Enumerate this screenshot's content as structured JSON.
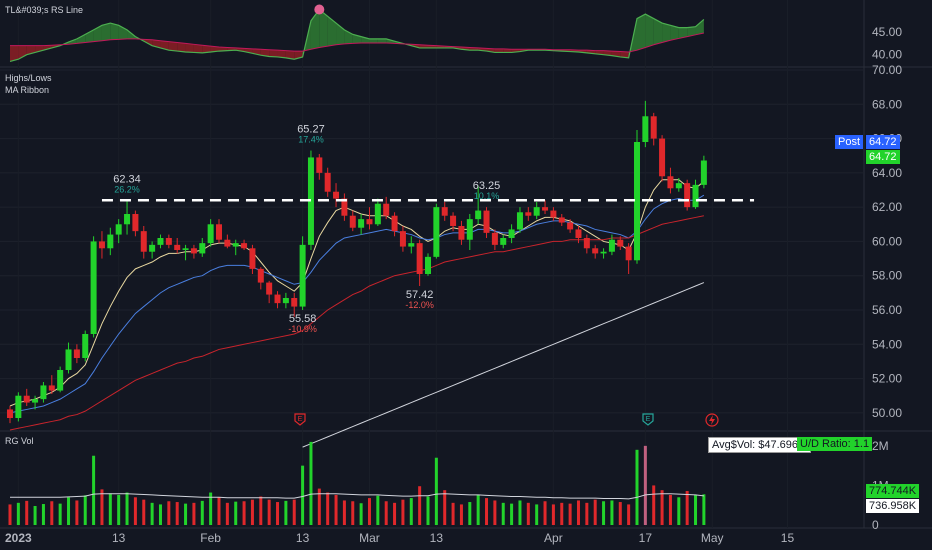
{
  "panes": {
    "rs": {
      "title": "TL&#039;s RS Line"
    },
    "price": {
      "title_1": "Highs/Lows",
      "title_2": "MA Ribbon"
    },
    "vol": {
      "title": "RG Vol"
    }
  },
  "tags": {
    "post_label": "Post",
    "post_value": "64.72",
    "last_value": "64.72",
    "avg_vol": "Avg$Vol: $47.696M",
    "ud_ratio": "U/D Ratio: 1.1",
    "vol_last": "774.744K",
    "vol_avg": "736.958K"
  },
  "colors": {
    "up": "#22d32b",
    "down": "#e0282b",
    "background": "#131722",
    "post_tag": "#2962ff",
    "last_tag": "#22d32b"
  },
  "icons": [
    "earnings-icon",
    "earnings-icon",
    "earnings-icon",
    "dividend-icon"
  ],
  "chart_data": {
    "type": "candlestick",
    "x_ticks": [
      "2023",
      "13",
      "Feb",
      "13",
      "Mar",
      "13",
      "Apr",
      "17",
      "May",
      "15"
    ],
    "price_axis": {
      "ylim": [
        49,
        70
      ],
      "ticks": [
        "70.00",
        "68.00",
        "66.00",
        "64.00",
        "62.00",
        "60.00",
        "58.00",
        "56.00",
        "54.00",
        "52.00",
        "50.00"
      ]
    },
    "rs_axis": {
      "ticks": [
        "45.00",
        "40.00"
      ]
    },
    "vol_axis": {
      "ticks": [
        "2M",
        "1M",
        "0"
      ]
    },
    "horizontal_line": 62.4,
    "annotations": [
      {
        "price": "62.34",
        "pct": "26.2%",
        "kind": "high"
      },
      {
        "price": "65.27",
        "pct": "17.4%",
        "kind": "high"
      },
      {
        "price": "55.58",
        "pct": "-10.9%",
        "kind": "low"
      },
      {
        "price": "63.25",
        "pct": "10.1%",
        "kind": "high"
      },
      {
        "price": "57.42",
        "pct": "-12.0%",
        "kind": "low"
      }
    ],
    "candles": [
      [
        50.2,
        50.4,
        49.4,
        49.7
      ],
      [
        49.7,
        51.2,
        49.5,
        51.0
      ],
      [
        51.0,
        51.4,
        50.4,
        50.6
      ],
      [
        50.6,
        51.0,
        50.2,
        50.8
      ],
      [
        50.8,
        51.8,
        50.6,
        51.6
      ],
      [
        51.6,
        52.2,
        51.1,
        51.3
      ],
      [
        51.3,
        52.7,
        51.2,
        52.5
      ],
      [
        52.5,
        54.1,
        52.3,
        53.7
      ],
      [
        53.7,
        54.0,
        52.9,
        53.2
      ],
      [
        53.2,
        54.8,
        53.0,
        54.6
      ],
      [
        54.6,
        60.3,
        54.4,
        60.0
      ],
      [
        60.0,
        60.6,
        59.0,
        59.6
      ],
      [
        59.6,
        60.8,
        59.2,
        60.4
      ],
      [
        60.4,
        61.3,
        59.9,
        61.0
      ],
      [
        61.0,
        62.4,
        60.4,
        61.6
      ],
      [
        61.6,
        61.8,
        60.3,
        60.6
      ],
      [
        60.6,
        60.9,
        59.0,
        59.4
      ],
      [
        59.4,
        60.0,
        59.0,
        59.8
      ],
      [
        59.8,
        60.4,
        59.6,
        60.2
      ],
      [
        60.2,
        60.4,
        59.6,
        59.8
      ],
      [
        59.8,
        60.2,
        59.3,
        59.5
      ],
      [
        59.5,
        59.8,
        58.9,
        59.6
      ],
      [
        59.6,
        59.8,
        59.0,
        59.3
      ],
      [
        59.3,
        60.2,
        59.1,
        59.9
      ],
      [
        59.9,
        61.3,
        59.7,
        61.0
      ],
      [
        61.0,
        61.3,
        59.9,
        60.1
      ],
      [
        60.1,
        60.4,
        59.6,
        59.7
      ],
      [
        59.7,
        60.1,
        59.2,
        59.9
      ],
      [
        59.9,
        60.1,
        59.5,
        59.6
      ],
      [
        59.6,
        59.8,
        58.1,
        58.4
      ],
      [
        58.4,
        58.5,
        57.2,
        57.6
      ],
      [
        57.6,
        57.7,
        56.4,
        56.9
      ],
      [
        56.9,
        57.1,
        56.1,
        56.4
      ],
      [
        56.4,
        57.0,
        56.1,
        56.7
      ],
      [
        56.7,
        57.0,
        55.6,
        56.2
      ],
      [
        56.2,
        60.3,
        56.0,
        59.8
      ],
      [
        59.8,
        65.3,
        59.5,
        64.9
      ],
      [
        64.9,
        65.1,
        63.6,
        64.0
      ],
      [
        64.0,
        64.3,
        62.6,
        62.9
      ],
      [
        62.9,
        63.4,
        62.0,
        62.5
      ],
      [
        62.5,
        62.8,
        61.2,
        61.5
      ],
      [
        61.5,
        61.8,
        60.6,
        60.8
      ],
      [
        60.8,
        61.6,
        60.4,
        61.3
      ],
      [
        61.3,
        62.0,
        60.7,
        61.0
      ],
      [
        61.0,
        62.5,
        60.9,
        62.2
      ],
      [
        62.2,
        62.6,
        61.3,
        61.5
      ],
      [
        61.5,
        61.7,
        60.3,
        60.6
      ],
      [
        60.6,
        60.9,
        59.4,
        59.7
      ],
      [
        59.7,
        60.3,
        59.3,
        59.9
      ],
      [
        59.9,
        60.1,
        57.4,
        58.1
      ],
      [
        58.1,
        59.3,
        58.0,
        59.1
      ],
      [
        59.1,
        62.2,
        59.0,
        62.0
      ],
      [
        62.0,
        62.3,
        61.2,
        61.5
      ],
      [
        61.5,
        61.7,
        60.6,
        60.9
      ],
      [
        60.9,
        61.2,
        59.8,
        60.1
      ],
      [
        60.1,
        61.6,
        59.5,
        61.3
      ],
      [
        61.3,
        63.25,
        61.0,
        61.8
      ],
      [
        61.8,
        62.0,
        60.2,
        60.5
      ],
      [
        60.5,
        60.7,
        59.5,
        59.8
      ],
      [
        59.8,
        60.4,
        59.6,
        60.2
      ],
      [
        60.2,
        61.0,
        59.9,
        60.7
      ],
      [
        60.7,
        62.0,
        60.5,
        61.7
      ],
      [
        61.7,
        62.0,
        61.2,
        61.5
      ],
      [
        61.5,
        62.3,
        61.3,
        62.0
      ],
      [
        62.0,
        62.4,
        61.6,
        61.8
      ],
      [
        61.8,
        62.0,
        61.2,
        61.4
      ],
      [
        61.4,
        61.6,
        60.9,
        61.1
      ],
      [
        61.1,
        61.3,
        60.5,
        60.7
      ],
      [
        60.7,
        60.9,
        59.9,
        60.2
      ],
      [
        60.2,
        60.4,
        59.3,
        59.6
      ],
      [
        59.6,
        59.8,
        59.0,
        59.3
      ],
      [
        59.3,
        59.6,
        59.0,
        59.4
      ],
      [
        59.4,
        60.4,
        59.2,
        60.1
      ],
      [
        60.1,
        60.3,
        59.5,
        59.7
      ],
      [
        59.7,
        59.9,
        58.1,
        58.9
      ],
      [
        58.9,
        66.5,
        58.7,
        65.8
      ],
      [
        65.8,
        68.2,
        65.5,
        67.3
      ],
      [
        67.3,
        67.5,
        65.6,
        66.0
      ],
      [
        66.0,
        66.2,
        63.5,
        63.8
      ],
      [
        63.8,
        64.3,
        62.8,
        63.1
      ],
      [
        63.1,
        63.7,
        62.9,
        63.4
      ],
      [
        63.4,
        63.6,
        61.8,
        62.0
      ],
      [
        62.0,
        63.6,
        61.9,
        63.3
      ],
      [
        63.3,
        65.0,
        63.1,
        64.72
      ]
    ],
    "ma_ribbon": [
      {
        "name": "",
        "color": "#e8d8a0",
        "values": [
          50.4,
          50.6,
          50.7,
          50.8,
          51.0,
          51.2,
          51.5,
          52.0,
          52.3,
          52.8,
          54.0,
          55.2,
          56.2,
          57.1,
          57.9,
          58.4,
          58.6,
          58.8,
          59.1,
          59.3,
          59.3,
          59.4,
          59.4,
          59.5,
          59.8,
          59.9,
          59.9,
          59.8,
          59.7,
          59.4,
          58.8,
          58.2,
          57.7,
          57.4,
          57.1,
          57.6,
          59.0,
          60.3,
          61.1,
          61.8,
          62.0,
          61.8,
          61.6,
          61.5,
          61.5,
          61.5,
          61.2,
          60.9,
          60.7,
          60.3,
          60.0,
          60.2,
          60.6,
          60.8,
          60.7,
          60.7,
          61.0,
          60.9,
          60.6,
          60.4,
          60.3,
          60.6,
          60.9,
          61.2,
          61.4,
          61.4,
          61.3,
          61.2,
          60.9,
          60.6,
          60.3,
          60.0,
          59.9,
          59.8,
          59.5,
          60.5,
          62.0,
          63.0,
          63.6,
          63.6,
          63.6,
          63.2,
          63.1,
          63.5
        ]
      },
      {
        "name": "",
        "color": "#4a7fe0",
        "values": [
          50.0,
          50.1,
          50.2,
          50.3,
          50.4,
          50.6,
          50.8,
          51.1,
          51.4,
          51.7,
          52.4,
          53.2,
          53.9,
          54.6,
          55.2,
          55.8,
          56.2,
          56.6,
          57.0,
          57.3,
          57.5,
          57.7,
          57.9,
          58.0,
          58.3,
          58.5,
          58.6,
          58.6,
          58.6,
          58.5,
          58.3,
          58.1,
          57.9,
          57.7,
          57.5,
          57.6,
          58.2,
          58.9,
          59.4,
          59.9,
          60.2,
          60.3,
          60.4,
          60.5,
          60.6,
          60.7,
          60.6,
          60.5,
          60.4,
          60.2,
          60.1,
          60.2,
          60.4,
          60.5,
          60.5,
          60.5,
          60.7,
          60.7,
          60.6,
          60.5,
          60.5,
          60.6,
          60.8,
          61.0,
          61.1,
          61.2,
          61.2,
          61.1,
          61.0,
          60.9,
          60.7,
          60.6,
          60.5,
          60.4,
          60.2,
          60.6,
          61.3,
          61.9,
          62.2,
          62.4,
          62.5,
          62.4,
          62.4,
          62.7
        ]
      },
      {
        "name": "",
        "color": "#c8242c",
        "values": [
          49.0,
          49.1,
          49.2,
          49.3,
          49.4,
          49.5,
          49.6,
          49.8,
          49.9,
          50.1,
          50.4,
          50.7,
          51.0,
          51.3,
          51.6,
          51.9,
          52.1,
          52.3,
          52.5,
          52.7,
          52.9,
          53.0,
          53.2,
          53.3,
          53.5,
          53.7,
          53.8,
          53.9,
          54.0,
          54.1,
          54.2,
          54.3,
          54.4,
          54.5,
          54.6,
          54.8,
          55.2,
          55.6,
          56.0,
          56.3,
          56.6,
          56.9,
          57.1,
          57.4,
          57.6,
          57.8,
          58.0,
          58.1,
          58.2,
          58.3,
          58.4,
          58.6,
          58.8,
          58.9,
          59.0,
          59.1,
          59.2,
          59.3,
          59.4,
          59.4,
          59.5,
          59.6,
          59.7,
          59.8,
          59.9,
          60.0,
          60.0,
          60.1,
          60.1,
          60.1,
          60.1,
          60.1,
          60.2,
          60.2,
          60.2,
          60.4,
          60.6,
          60.8,
          61.0,
          61.1,
          61.2,
          61.3,
          61.4,
          61.5
        ]
      },
      {
        "name": "",
        "color": "#d1d4dc",
        "values": [
          41.0,
          41.2,
          41.4,
          41.6,
          41.8,
          42.0,
          42.2,
          42.4,
          42.6,
          42.8,
          43.0,
          43.2,
          43.4,
          43.6,
          43.8,
          44.0,
          44.2,
          44.4,
          44.6,
          44.8,
          45.0,
          45.2,
          45.4,
          45.6,
          45.8,
          46.0,
          46.2,
          46.4,
          46.6,
          46.8,
          47.0,
          47.2,
          47.4,
          47.6,
          47.8,
          48.0,
          48.2,
          48.4,
          48.6,
          48.8,
          49.0,
          49.2,
          49.4,
          49.6,
          49.8,
          50.0,
          50.2,
          50.4,
          50.6,
          50.8,
          51.0,
          51.2,
          51.4,
          51.6,
          51.8,
          52.0,
          52.2,
          52.4,
          52.6,
          52.8,
          53.0,
          53.2,
          53.4,
          53.6,
          53.8,
          54.0,
          54.2,
          54.4,
          54.6,
          54.8,
          55.0,
          55.2,
          55.4,
          55.6,
          55.8,
          56.0,
          56.2,
          56.4,
          56.6,
          56.8,
          57.0,
          57.2,
          57.4,
          57.6
        ]
      }
    ],
    "rs_line": [
      38.5,
      39.0,
      40.0,
      40.5,
      41.0,
      41.5,
      42.0,
      42.8,
      43.5,
      44.5,
      45.5,
      46.5,
      47.0,
      46.5,
      45.5,
      44.0,
      43.0,
      42.0,
      41.5,
      41.0,
      40.8,
      40.6,
      40.5,
      40.4,
      40.6,
      40.8,
      40.9,
      41.0,
      40.7,
      40.3,
      39.9,
      39.6,
      39.5,
      39.3,
      39.0,
      39.5,
      47.5,
      50.0,
      48.5,
      47.0,
      45.5,
      44.5,
      44.0,
      43.5,
      43.5,
      43.5,
      43.0,
      42.5,
      42.0,
      41.5,
      41.5,
      41.5,
      41.5,
      41.5,
      41.2,
      41.0,
      41.0,
      40.8,
      40.5,
      40.5,
      40.5,
      40.7,
      41.0,
      41.0,
      41.0,
      40.9,
      40.8,
      40.7,
      40.6,
      40.4,
      40.2,
      40.0,
      39.8,
      39.5,
      39.3,
      48.0,
      49.0,
      48.0,
      47.0,
      46.5,
      46.0,
      46.0,
      46.2,
      47.8
    ],
    "rs_ma": [
      42.0,
      42.0,
      42.0,
      42.0,
      42.0,
      42.1,
      42.2,
      42.3,
      42.5,
      42.7,
      42.9,
      43.1,
      43.3,
      43.4,
      43.5,
      43.5,
      43.4,
      43.3,
      43.1,
      42.9,
      42.7,
      42.5,
      42.3,
      42.1,
      41.9,
      41.7,
      41.6,
      41.5,
      41.4,
      41.3,
      41.2,
      41.1,
      41.0,
      40.9,
      40.8,
      40.8,
      41.2,
      41.6,
      41.9,
      42.2,
      42.4,
      42.5,
      42.6,
      42.6,
      42.6,
      42.6,
      42.5,
      42.4,
      42.3,
      42.2,
      42.1,
      42.0,
      41.9,
      41.8,
      41.7,
      41.6,
      41.5,
      41.4,
      41.3,
      41.3,
      41.2,
      41.2,
      41.2,
      41.2,
      41.2,
      41.1,
      41.1,
      41.1,
      41.0,
      41.0,
      40.9,
      40.9,
      40.8,
      40.7,
      40.6,
      41.0,
      41.6,
      42.2,
      42.7,
      43.2,
      43.6,
      44.0,
      44.4,
      44.8
    ],
    "volume_k": [
      520,
      560,
      610,
      480,
      530,
      600,
      540,
      700,
      620,
      750,
      1750,
      900,
      800,
      760,
      820,
      700,
      640,
      560,
      520,
      600,
      580,
      540,
      560,
      610,
      820,
      700,
      560,
      590,
      600,
      640,
      720,
      640,
      580,
      610,
      640,
      1500,
      2100,
      920,
      820,
      760,
      620,
      600,
      550,
      680,
      740,
      600,
      560,
      640,
      680,
      980,
      720,
      1700,
      880,
      560,
      520,
      580,
      760,
      680,
      620,
      560,
      540,
      620,
      560,
      520,
      600,
      520,
      560,
      540,
      620,
      560,
      640,
      600,
      620,
      580,
      520,
      1900,
      2000,
      1000,
      880,
      760,
      700,
      860,
      760,
      775
    ],
    "volume_avg_k": [
      700,
      700,
      700,
      700,
      700,
      700,
      700,
      710,
      720,
      730,
      780,
      790,
      790,
      790,
      790,
      780,
      770,
      760,
      750,
      740,
      730,
      720,
      710,
      700,
      700,
      700,
      690,
      690,
      690,
      690,
      690,
      690,
      690,
      680,
      680,
      720,
      780,
      790,
      790,
      790,
      780,
      770,
      760,
      760,
      760,
      750,
      740,
      730,
      730,
      740,
      740,
      780,
      790,
      780,
      770,
      760,
      760,
      750,
      740,
      730,
      720,
      720,
      710,
      700,
      700,
      690,
      690,
      680,
      680,
      680,
      680,
      670,
      670,
      670,
      660,
      700,
      760,
      780,
      790,
      790,
      780,
      770,
      760,
      737
    ],
    "vol_colors": "ratio-of-up-down"
  }
}
